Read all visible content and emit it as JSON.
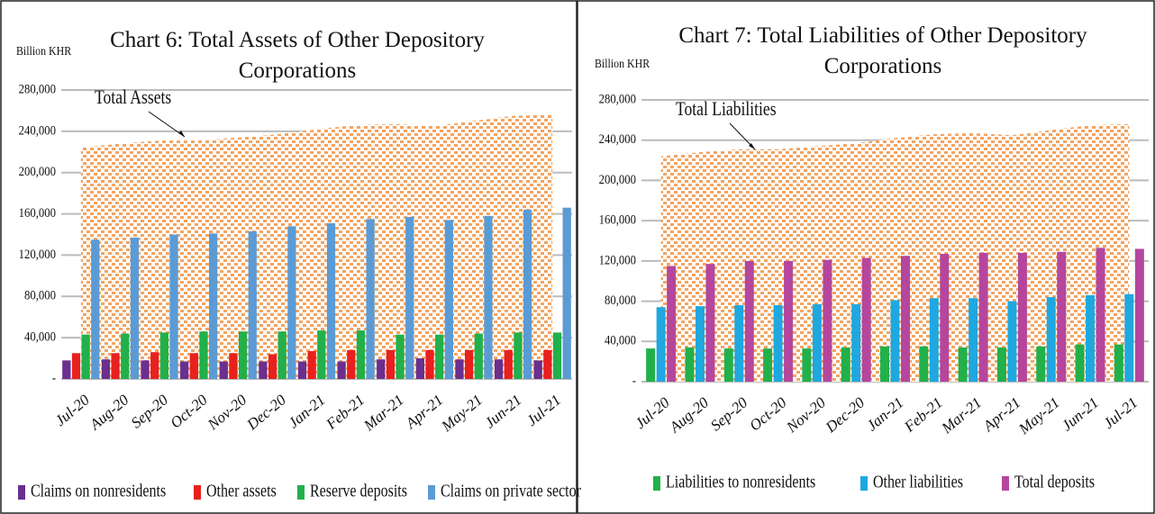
{
  "chart_data": [
    {
      "type": "bar",
      "title": "Chart 6: Total Assets of Other Depository Corporations",
      "y_label": "Billion KHR",
      "categories": [
        "Jul-20",
        "Aug-20",
        "Sep-20",
        "Oct-20",
        "Nov-20",
        "Dec-20",
        "Jan-21",
        "Feb-21",
        "Mar-21",
        "Apr-21",
        "May-21",
        "Jun-21",
        "Jul-21"
      ],
      "series": [
        {
          "name": "Claims on nonresidents",
          "color": "#6a2f8f",
          "values": [
            18000,
            19000,
            18000,
            17000,
            17000,
            17000,
            17000,
            17000,
            19000,
            20000,
            19000,
            19000,
            18000
          ]
        },
        {
          "name": "Other assets",
          "color": "#e8211e",
          "values": [
            25000,
            25000,
            26000,
            25000,
            25000,
            24000,
            27000,
            28000,
            28000,
            28000,
            28000,
            28000,
            28000
          ]
        },
        {
          "name": "Reserve deposits",
          "color": "#22b04b",
          "values": [
            43000,
            44000,
            45000,
            46000,
            46000,
            46000,
            47000,
            47000,
            43000,
            43000,
            44000,
            45000,
            45000
          ]
        },
        {
          "name": "Claims on private sector",
          "color": "#5b9bd5",
          "values": [
            135000,
            137000,
            140000,
            141000,
            143000,
            148000,
            151000,
            155000,
            157000,
            154000,
            158000,
            164000,
            166000
          ]
        },
        {
          "name": "Total Assets",
          "kind": "area",
          "color": "#f4a460",
          "values": [
            224000,
            228000,
            231000,
            231000,
            234000,
            237000,
            242000,
            246000,
            247000,
            245000,
            250000,
            255000,
            256000
          ]
        }
      ],
      "ylim": [
        0,
        280000
      ],
      "yticks": [
        {
          "value": 0,
          "label": "-"
        },
        {
          "value": 40000,
          "label": "40,000"
        },
        {
          "value": 80000,
          "label": "80,000"
        },
        {
          "value": 120000,
          "label": "120,000"
        },
        {
          "value": 160000,
          "label": "160,000"
        },
        {
          "value": 200000,
          "label": "200,000"
        },
        {
          "value": 240000,
          "label": "240,000"
        },
        {
          "value": 280000,
          "label": "280,000"
        }
      ],
      "grid": true
    },
    {
      "type": "bar",
      "title": "Chart 7: Total Liabilities of Other Depository Corporations",
      "y_label": "Billion KHR",
      "categories": [
        "Jul-20",
        "Aug-20",
        "Sep-20",
        "Oct-20",
        "Nov-20",
        "Dec-20",
        "Jan-21",
        "Feb-21",
        "Mar-21",
        "Apr-21",
        "May-21",
        "Jun-21",
        "Jul-21"
      ],
      "series": [
        {
          "name": "Liabilities to nonresidents",
          "color": "#22b04b",
          "values": [
            33000,
            34000,
            33000,
            33000,
            33000,
            34000,
            35000,
            35000,
            34000,
            34000,
            35000,
            37000,
            37000
          ]
        },
        {
          "name": "Other liabilities",
          "color": "#1fa8e0",
          "values": [
            74000,
            75000,
            76000,
            76000,
            77000,
            77000,
            81000,
            83000,
            83000,
            80000,
            84000,
            86000,
            87000
          ]
        },
        {
          "name": "Total deposits",
          "color": "#b5469d",
          "values": [
            115000,
            117000,
            120000,
            120000,
            121000,
            123000,
            125000,
            127000,
            128000,
            128000,
            129000,
            133000,
            132000
          ]
        },
        {
          "name": "Total Liabilities",
          "kind": "area",
          "color": "#f4a460",
          "values": [
            224000,
            228000,
            231000,
            231000,
            234000,
            237000,
            242000,
            246000,
            247000,
            245000,
            250000,
            255000,
            256000
          ]
        }
      ],
      "ylim": [
        0,
        280000
      ],
      "yticks": [
        {
          "value": 0,
          "label": "-"
        },
        {
          "value": 40000,
          "label": "40,000"
        },
        {
          "value": 80000,
          "label": "80,000"
        },
        {
          "value": 120000,
          "label": "120,000"
        },
        {
          "value": 160000,
          "label": "160,000"
        },
        {
          "value": 200000,
          "label": "200,000"
        },
        {
          "value": 240000,
          "label": "240,000"
        },
        {
          "value": 280000,
          "label": "280,000"
        }
      ],
      "grid": true
    }
  ]
}
